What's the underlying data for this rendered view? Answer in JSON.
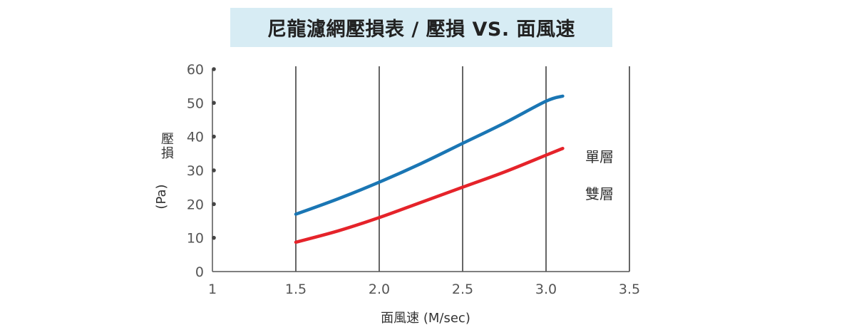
{
  "chart_data": {
    "type": "line",
    "title": "尼龍濾網壓損表 / 壓損 VS. 面風速",
    "xlabel": "面風速 (M/sec)",
    "ylabel_main": "壓損",
    "ylabel_unit": "(Pa)",
    "xlim": [
      1,
      3.5
    ],
    "ylim": [
      0,
      60
    ],
    "x_ticks": [
      "1",
      "1.5",
      "2.0",
      "2.5",
      "3.0",
      "3.5"
    ],
    "x_tick_values": [
      1,
      1.5,
      2.0,
      2.5,
      3.0,
      3.5
    ],
    "y_ticks": [
      "0",
      "10",
      "20",
      "30",
      "40",
      "50",
      "60"
    ],
    "y_tick_values": [
      0,
      10,
      20,
      30,
      40,
      50,
      60
    ],
    "grid_x": [
      1.5,
      2.0,
      2.5,
      3.0,
      3.5
    ],
    "series": [
      {
        "name": "單層",
        "color": "#1a76b4",
        "x": [
          1.5,
          1.75,
          2.0,
          2.25,
          2.5,
          2.75,
          3.0,
          3.1
        ],
        "y": [
          17,
          21.5,
          26.5,
          32,
          38,
          44,
          50.5,
          52
        ]
      },
      {
        "name": "雙層",
        "color": "#e5232a",
        "x": [
          1.5,
          1.75,
          2.0,
          2.25,
          2.5,
          2.75,
          3.0,
          3.1
        ],
        "y": [
          8.7,
          12,
          16,
          20.5,
          25,
          29.5,
          34.5,
          36.5
        ]
      }
    ],
    "legend_position": "right"
  }
}
